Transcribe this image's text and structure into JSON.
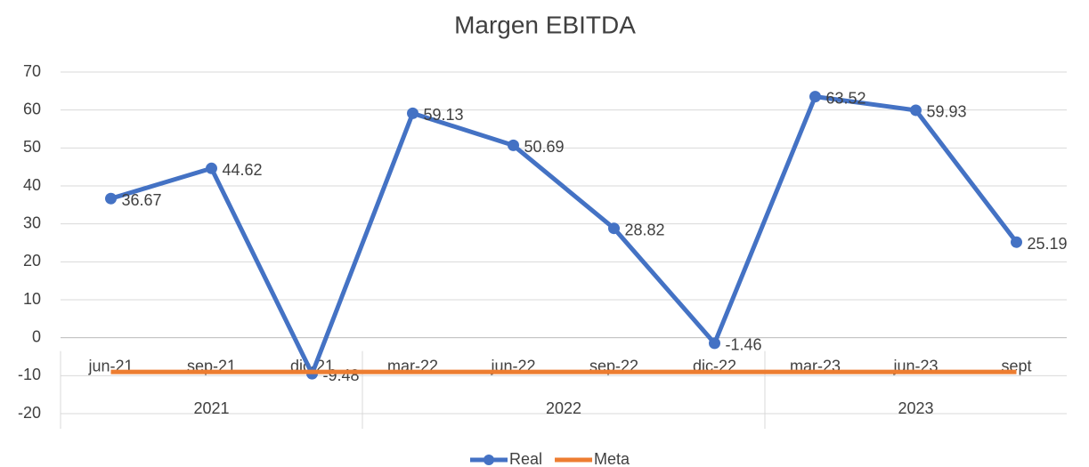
{
  "chart_data": {
    "type": "line",
    "title": "Margen EBITDA",
    "categories": [
      "jun-21",
      "sep-21",
      "dic-21",
      "mar-22",
      "jun-22",
      "sep-22",
      "dic-22",
      "mar-23",
      "jun-23",
      "sept"
    ],
    "category_groups": [
      "2021",
      "2021",
      "2021",
      "2022",
      "2022",
      "2022",
      "2022",
      "2023",
      "2023",
      "2023"
    ],
    "series": [
      {
        "name": "Real",
        "color": "#4472c4",
        "values": [
          36.67,
          44.62,
          -9.48,
          59.13,
          50.69,
          28.82,
          -1.46,
          63.52,
          59.93,
          25.19
        ],
        "markers": true,
        "data_labels": true
      },
      {
        "name": "Meta",
        "color": "#ed7d31",
        "values": [
          -9,
          -9,
          -9,
          -9,
          -9,
          -9,
          -9,
          -9,
          -9,
          -9
        ],
        "markers": false,
        "data_labels": false
      }
    ],
    "ylim": [
      -20,
      70
    ],
    "yticks": [
      -20,
      -10,
      0,
      10,
      20,
      30,
      40,
      50,
      60,
      70
    ],
    "grid": true,
    "legend": "bottom"
  }
}
